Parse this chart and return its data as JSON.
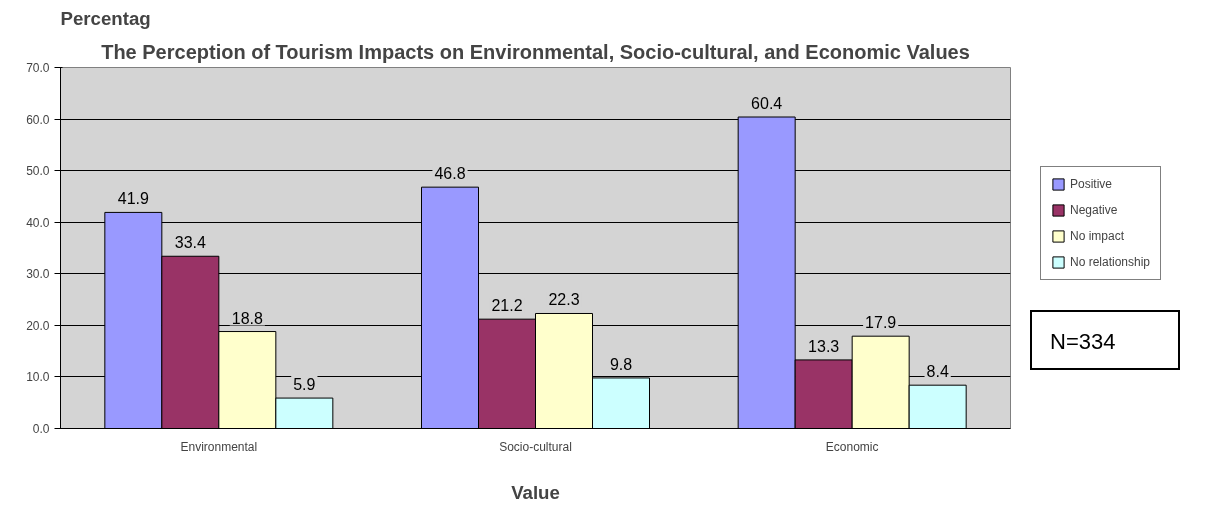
{
  "chart_data": {
    "type": "bar",
    "title": "The Perception of Tourism Impacts on Environmental, Socio-cultural, and Economic Values",
    "ylabel": "Percentag",
    "xlabel": "Value",
    "categories": [
      "Environmental",
      "Socio-cultural",
      "Economic"
    ],
    "series": [
      {
        "name": "Positive",
        "color": "#9999ff",
        "values": [
          41.9,
          46.8,
          60.4
        ]
      },
      {
        "name": "Negative",
        "color": "#993366",
        "values": [
          33.4,
          21.2,
          13.3
        ]
      },
      {
        "name": "No impact",
        "color": "#ffffcc",
        "values": [
          18.8,
          22.3,
          17.9
        ]
      },
      {
        "name": "No relationship",
        "color": "#ccffff",
        "values": [
          5.9,
          9.8,
          8.4
        ]
      }
    ],
    "ylim": [
      0,
      70
    ],
    "yticks": [
      {
        "value": 0,
        "label": "0.0"
      },
      {
        "value": 10,
        "label": "10.0"
      },
      {
        "value": 20,
        "label": "20.0"
      },
      {
        "value": 30,
        "label": "30.0"
      },
      {
        "value": 40,
        "label": "40.0"
      },
      {
        "value": 50,
        "label": "50.0"
      },
      {
        "value": 60,
        "label": "60.0"
      },
      {
        "value": 70,
        "label": "70.0"
      }
    ],
    "grid": "y",
    "legend": "right",
    "data_labels": true,
    "annotations": [
      "N=334"
    ]
  }
}
